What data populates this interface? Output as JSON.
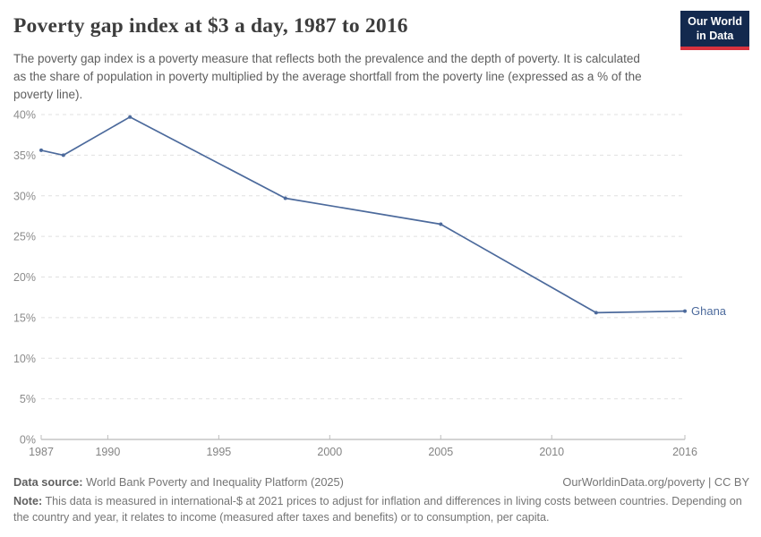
{
  "header": {
    "title": "Poverty gap index at $3 a day, 1987 to 2016",
    "subtitle": "The poverty gap index is a poverty measure that reflects both the prevalence and the depth of poverty. It is calculated as the share of population in poverty multiplied by the average shortfall from the poverty line (expressed as a % of the poverty line).",
    "logo": {
      "line1": "Our World",
      "line2": "in Data",
      "bg_color": "#13294e",
      "stripe_color": "#d8323e"
    }
  },
  "chart_data": {
    "type": "line",
    "title": "Poverty gap index at $3 a day, 1987 to 2016",
    "xlabel": "",
    "ylabel": "",
    "xlim": [
      1987,
      2016
    ],
    "ylim": [
      0,
      40
    ],
    "x_ticks": [
      1987,
      1990,
      1995,
      2000,
      2005,
      2010,
      2016
    ],
    "y_ticks": [
      0,
      5,
      10,
      15,
      20,
      25,
      30,
      35,
      40
    ],
    "y_tick_suffix": "%",
    "grid": "horizontal-dashed",
    "legend_position": "end-of-line-label",
    "series": [
      {
        "name": "Ghana",
        "color": "#4C6A9C",
        "points": [
          [
            1987,
            35.6
          ],
          [
            1988,
            35.0
          ],
          [
            1991,
            39.7
          ],
          [
            1998,
            29.7
          ],
          [
            2005,
            26.5
          ],
          [
            2012,
            15.6
          ],
          [
            2016,
            15.8
          ]
        ]
      }
    ]
  },
  "footer": {
    "source_label": "Data source:",
    "source_text": "World Bank Poverty and Inequality Platform (2025)",
    "attribution": "OurWorldinData.org/poverty | CC BY",
    "note_label": "Note:",
    "note_text": "This data is measured in international-$ at 2021 prices to adjust for inflation and differences in living costs between countries. Depending on the country and year, it relates to income (measured after taxes and benefits) or to consumption, per capita."
  }
}
